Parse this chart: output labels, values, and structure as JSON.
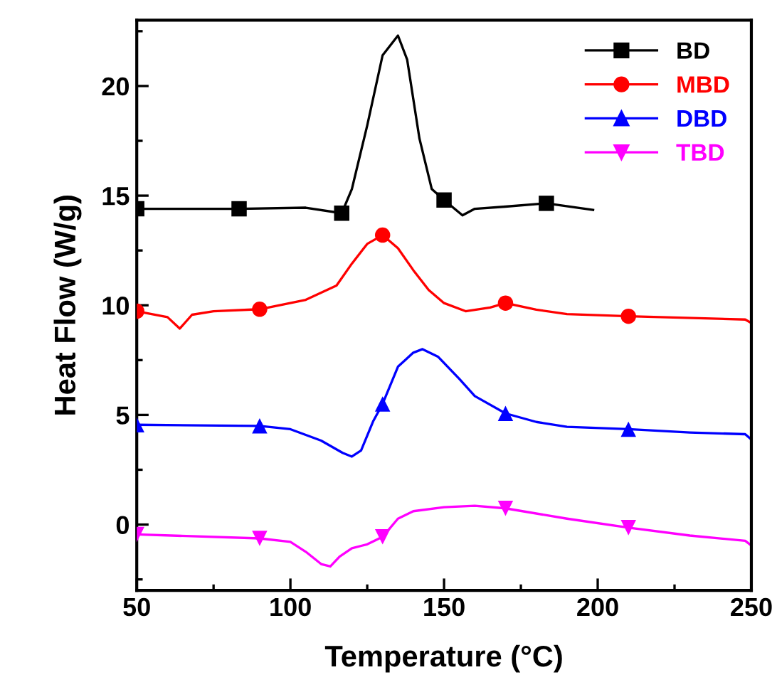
{
  "chart_data": {
    "type": "line",
    "xlabel": "Temperature (°C)",
    "ylabel": "Heat Flow (W/g)",
    "xlim": [
      50,
      250
    ],
    "ylim": [
      -3,
      23
    ],
    "xticks": [
      50,
      {
        "value": 75,
        "label": null
      },
      100,
      {
        "value": 125,
        "label": null
      },
      150,
      {
        "value": 175,
        "label": null
      },
      200,
      {
        "value": 225,
        "label": null
      },
      250
    ],
    "yticks": [
      {
        "value": -2.5,
        "label": null
      },
      0,
      {
        "value": 2.5,
        "label": null
      },
      5,
      {
        "value": 7.5,
        "label": null
      },
      10,
      {
        "value": 12.5,
        "label": null
      },
      15,
      {
        "value": 17.5,
        "label": null
      },
      20,
      {
        "value": 22.5,
        "label": null
      }
    ],
    "legend": "top right",
    "grid": false,
    "line_style": "solid",
    "series": [
      {
        "name": "BD",
        "color": "#000000",
        "x": [
          50,
          83.3,
          105,
          116.7,
          120,
          125,
          130,
          135,
          138,
          142,
          146,
          150,
          156,
          160,
          170,
          183.3,
          198.5
        ],
        "values": [
          14.4,
          14.4,
          14.45,
          14.2,
          15.3,
          18.2,
          21.4,
          22.3,
          21.2,
          17.6,
          15.3,
          14.8,
          14.1,
          14.4,
          14.5,
          14.65,
          14.35
        ]
      },
      {
        "color": "#000000",
        "type": "scatter",
        "marker": "square",
        "x": [
          50,
          83.3,
          116.7,
          150,
          183.3
        ],
        "values": [
          14.4,
          14.4,
          14.2,
          14.8,
          14.65
        ]
      },
      {
        "name": "MBD",
        "color": "#ff0000",
        "x": [
          50,
          60,
          64,
          68,
          75,
          90,
          105,
          115,
          120,
          125,
          130,
          135,
          140,
          145,
          150,
          157,
          165,
          170,
          180,
          190,
          210,
          248,
          249.5
        ],
        "values": [
          9.73,
          9.46,
          8.94,
          9.57,
          9.73,
          9.82,
          10.25,
          10.9,
          11.9,
          12.8,
          13.2,
          12.6,
          11.6,
          10.7,
          10.1,
          9.73,
          9.9,
          10.1,
          9.8,
          9.6,
          9.5,
          9.35,
          9.23
        ]
      },
      {
        "color": "#ff0000",
        "type": "scatter",
        "marker": "circle",
        "x": [
          50,
          90,
          130,
          170,
          210
        ],
        "values": [
          9.73,
          9.82,
          13.2,
          10.1,
          9.5
        ]
      },
      {
        "name": "DBD",
        "color": "#0000ff",
        "x": [
          50,
          90,
          100,
          110,
          117,
          120,
          123,
          127,
          130,
          135,
          140,
          143,
          148,
          155,
          160,
          170,
          180,
          190,
          210,
          230,
          248,
          249.5
        ],
        "values": [
          4.55,
          4.5,
          4.35,
          3.83,
          3.27,
          3.1,
          3.38,
          4.73,
          5.5,
          7.2,
          7.84,
          8.0,
          7.66,
          6.64,
          5.86,
          5.07,
          4.68,
          4.46,
          4.35,
          4.2,
          4.12,
          3.94
        ]
      },
      {
        "color": "#0000ff",
        "type": "scatter",
        "marker": "triangle",
        "x": [
          50,
          90,
          130,
          170,
          210
        ],
        "values": [
          4.55,
          4.5,
          5.5,
          5.07,
          4.35
        ]
      },
      {
        "name": "TBD",
        "color": "#ff00ff",
        "x": [
          50,
          90,
          100,
          105,
          110,
          113,
          116,
          120,
          125,
          130,
          135,
          140,
          150,
          160,
          170,
          190,
          210,
          230,
          248,
          249.5
        ],
        "values": [
          -0.45,
          -0.63,
          -0.79,
          -1.24,
          -1.8,
          -1.91,
          -1.46,
          -1.08,
          -0.9,
          -0.56,
          0.27,
          0.61,
          0.79,
          0.86,
          0.74,
          0.27,
          -0.14,
          -0.5,
          -0.74,
          -0.9
        ]
      },
      {
        "color": "#ff00ff",
        "type": "scatter",
        "marker": "triangle_down",
        "x": [
          50,
          90,
          130,
          170,
          210
        ],
        "values": [
          -0.45,
          -0.63,
          -0.56,
          0.74,
          -0.14
        ]
      }
    ]
  }
}
